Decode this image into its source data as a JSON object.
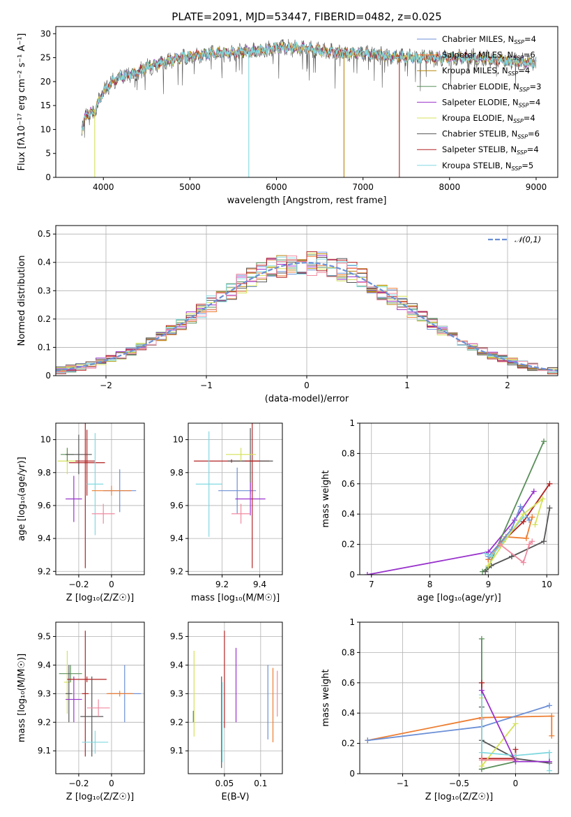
{
  "title": "PLATE=2091, MJD=53447, FIBERID=0482, z=0.025",
  "colors": {
    "chabrier_miles": "#6b8fd6",
    "salpeter_miles": "#ed7d31",
    "kroupa_miles": "#b8860b",
    "chabrier_elodie": "#5a8f5a",
    "salpeter_elodie": "#9932cc",
    "kroupa_elodie": "#d4e157",
    "chabrier_stelib": "#555555",
    "salpeter_stelib": "#b22222",
    "kroupa_stelib": "#80d8e0",
    "pink": "#f08aa0"
  },
  "chart_data": [
    {
      "id": "spectrum",
      "type": "line",
      "title": "PLATE=2091, MJD=53447, FIBERID=0482, z=0.025",
      "xlabel": "wavelength [Angstrom, rest frame]",
      "ylabel": "Flux [fλ10⁻¹⁷ erg cm⁻² s⁻¹ A⁻¹]",
      "xlim": [
        3450,
        9250
      ],
      "ylim": [
        0,
        31.5
      ],
      "xticks": [
        4000,
        5000,
        6000,
        7000,
        8000,
        9000
      ],
      "yticks": [
        0,
        5,
        10,
        15,
        20,
        25,
        30
      ],
      "grid": false,
      "legend_position": "top-right",
      "series": [
        {
          "name": "Chabrier MILES, N_SSP=4",
          "label_main": "Chabrier MILES, N",
          "label_sub": "SSP",
          "label_tail": "=4",
          "color_key": "chabrier_miles"
        },
        {
          "name": "Salpeter MILES, N_SSP=6",
          "label_main": "Salpeter MILES, N",
          "label_sub": "SSP",
          "label_tail": "=6",
          "color_key": "salpeter_miles"
        },
        {
          "name": "Kroupa MILES, N_SSP=4",
          "label_main": "Kroupa MILES, N",
          "label_sub": "SSP",
          "label_tail": "=4",
          "color_key": "kroupa_miles"
        },
        {
          "name": "Chabrier ELODIE, N_SSP=3",
          "label_main": "Chabrier ELODIE, N",
          "label_sub": "SSP",
          "label_tail": "=3",
          "color_key": "chabrier_elodie"
        },
        {
          "name": "Salpeter ELODIE, N_SSP=4",
          "label_main": "Salpeter ELODIE, N",
          "label_sub": "SSP",
          "label_tail": "=4",
          "color_key": "salpeter_elodie"
        },
        {
          "name": "Kroupa ELODIE, N_SSP=4",
          "label_main": "Kroupa ELODIE, N",
          "label_sub": "SSP",
          "label_tail": "=4",
          "color_key": "kroupa_elodie"
        },
        {
          "name": "Chabrier STELIB, N_SSP=6",
          "label_main": "Chabrier STELIB, N",
          "label_sub": "SSP",
          "label_tail": "=6",
          "color_key": "chabrier_stelib"
        },
        {
          "name": "Salpeter STELIB, N_SSP=4",
          "label_main": "Salpeter STELIB, N",
          "label_sub": "SSP",
          "label_tail": "=4",
          "color_key": "salpeter_stelib"
        },
        {
          "name": "Kroupa STELIB, N_SSP=5",
          "label_main": "Kroupa STELIB, N",
          "label_sub": "SSP",
          "label_tail": "=5",
          "color_key": "kroupa_stelib"
        }
      ],
      "continuum": [
        [
          3750,
          10
        ],
        [
          3800,
          13
        ],
        [
          3900,
          14
        ],
        [
          3950,
          16
        ],
        [
          4000,
          18
        ],
        [
          4100,
          20
        ],
        [
          4200,
          21
        ],
        [
          4300,
          21.5
        ],
        [
          4400,
          22
        ],
        [
          4500,
          23
        ],
        [
          4700,
          24
        ],
        [
          4900,
          25
        ],
        [
          5100,
          25.5
        ],
        [
          5300,
          26
        ],
        [
          5500,
          26
        ],
        [
          5800,
          26.5
        ],
        [
          6000,
          27
        ],
        [
          6300,
          27
        ],
        [
          6500,
          26.5
        ],
        [
          6700,
          26
        ],
        [
          7000,
          26
        ],
        [
          7200,
          25.5
        ],
        [
          7500,
          25
        ],
        [
          7800,
          25
        ],
        [
          8000,
          25
        ],
        [
          8300,
          25
        ],
        [
          8600,
          24.5
        ],
        [
          8900,
          24
        ],
        [
          9000,
          24
        ]
      ],
      "dips": [
        {
          "x": 3900,
          "y": 0,
          "key": "kroupa_elodie"
        },
        {
          "x": 5680,
          "y": 0,
          "key": "kroupa_stelib"
        },
        {
          "x": 6780,
          "y": 0,
          "key": "kroupa_miles"
        },
        {
          "x": 7420,
          "y": 0,
          "key": "salpeter_stelib"
        }
      ]
    },
    {
      "id": "residuals",
      "type": "histogram",
      "xlabel": "(data-model)/error",
      "ylabel": "Normed distribution",
      "xlim": [
        -2.5,
        2.5
      ],
      "ylim": [
        0,
        0.53
      ],
      "xticks": [
        -2,
        -1,
        0,
        1,
        2
      ],
      "yticks": [
        0.0,
        0.1,
        0.2,
        0.3,
        0.4,
        0.5
      ],
      "grid": true,
      "legend_position": "top-right",
      "curve": {
        "name": "𝒩(0,1)",
        "type": "gaussian",
        "mean": 0,
        "sigma": 1,
        "color_key": "chabrier_miles"
      },
      "bin_width": 0.1
    },
    {
      "id": "age_vs_Z",
      "type": "errorbar",
      "xlabel": "Z [log₁₀(Z/Z☉)]",
      "ylabel": "age  [log₁₀(age/yr)]",
      "xlim": [
        -0.34,
        0.2
      ],
      "ylim": [
        9.18,
        10.1
      ],
      "xticks": [
        -0.2,
        0.0
      ],
      "yticks": [
        9.2,
        9.4,
        9.6,
        9.8,
        10.0
      ],
      "grid": true,
      "points": [
        {
          "x": -0.27,
          "y": 9.87,
          "xerr": 0.06,
          "yerr": 0.08,
          "key": "kroupa_elodie"
        },
        {
          "x": -0.27,
          "y": 9.91,
          "xerr": 0.04,
          "yerr": 0.04,
          "key": "chabrier_elodie"
        },
        {
          "x": -0.2,
          "y": 9.91,
          "xerr": 0.08,
          "yerr": 0.12,
          "key": "chabrier_stelib"
        },
        {
          "x": -0.23,
          "y": 9.64,
          "xerr": 0.05,
          "yerr": 0.14,
          "key": "salpeter_elodie"
        },
        {
          "x": -0.15,
          "y": 9.86,
          "xerr": 0.11,
          "yerr": 0.2,
          "key": "salpeter_stelib"
        },
        {
          "x": -0.16,
          "y": 9.87,
          "xerr": 0.06,
          "yerr": 0.65,
          "key": "salpeter_stelib"
        },
        {
          "x": -0.1,
          "y": 9.73,
          "xerr": 0.05,
          "yerr": 0.31,
          "key": "kroupa_stelib"
        },
        {
          "x": -0.05,
          "y": 9.55,
          "xerr": 0.07,
          "yerr": 0.06,
          "key": "pink"
        },
        {
          "x": 0.05,
          "y": 9.69,
          "xerr": 0.1,
          "yerr": 0.13,
          "key": "chabrier_miles"
        },
        {
          "x": 0.0,
          "y": 9.69,
          "xerr": 0.12,
          "yerr": 0.03,
          "key": "salpeter_miles"
        }
      ]
    },
    {
      "id": "age_vs_mass",
      "type": "errorbar",
      "xlabel": "mass [log₁₀(M/M☉)]",
      "ylabel": "",
      "xlim": [
        9.02,
        9.52
      ],
      "ylim": [
        9.18,
        10.1
      ],
      "xticks": [
        9.2,
        9.4
      ],
      "yticks": [
        9.2,
        9.4,
        9.6,
        9.8,
        10.0
      ],
      "grid": true,
      "points": [
        {
          "x": 9.25,
          "y": 9.87,
          "xerr": 0.2,
          "yerr": 0.01,
          "key": "salpeter_stelib"
        },
        {
          "x": 9.35,
          "y": 9.87,
          "xerr": 0.12,
          "yerr": 0.2,
          "key": "chabrier_stelib"
        },
        {
          "x": 9.13,
          "y": 9.73,
          "xerr": 0.07,
          "yerr": 0.32,
          "key": "kroupa_stelib"
        },
        {
          "x": 9.28,
          "y": 9.69,
          "xerr": 0.1,
          "yerr": 0.14,
          "key": "chabrier_miles"
        },
        {
          "x": 9.35,
          "y": 9.64,
          "xerr": 0.08,
          "yerr": 0.1,
          "key": "salpeter_elodie"
        },
        {
          "x": 9.3,
          "y": 9.55,
          "xerr": 0.05,
          "yerr": 0.06,
          "key": "pink"
        },
        {
          "x": 9.36,
          "y": 9.87,
          "xerr": 0.04,
          "yerr": 0.65,
          "key": "salpeter_stelib"
        },
        {
          "x": 9.3,
          "y": 9.91,
          "xerr": 0.08,
          "yerr": 0.04,
          "key": "kroupa_elodie"
        }
      ]
    },
    {
      "id": "weight_vs_age",
      "type": "line",
      "xlabel": "age  [log₁₀(age/yr)]",
      "ylabel": "mass weight",
      "xlim": [
        6.8,
        10.2
      ],
      "ylim": [
        0,
        1.0
      ],
      "xticks": [
        7,
        8,
        9,
        10
      ],
      "yticks": [
        0.0,
        0.2,
        0.4,
        0.6,
        0.8,
        1.0
      ],
      "grid": true,
      "series": [
        {
          "key": "salpeter_elodie",
          "x": [
            6.93,
            9.0,
            9.45,
            9.78
          ],
          "y": [
            0.0,
            0.15,
            0.36,
            0.55
          ]
        },
        {
          "key": "chabrier_elodie",
          "x": [
            8.9,
            9.0,
            9.95
          ],
          "y": [
            0.02,
            0.05,
            0.88
          ]
        },
        {
          "key": "salpeter_stelib",
          "x": [
            9.0,
            9.25,
            9.6,
            10.05
          ],
          "y": [
            0.1,
            0.22,
            0.35,
            0.6
          ]
        },
        {
          "key": "chabrier_stelib",
          "x": [
            8.95,
            9.05,
            9.4,
            9.95,
            10.05
          ],
          "y": [
            0.02,
            0.06,
            0.12,
            0.22,
            0.44
          ]
        },
        {
          "key": "salpeter_miles",
          "x": [
            9.0,
            9.3,
            9.65,
            9.75
          ],
          "y": [
            0.1,
            0.25,
            0.24,
            0.38
          ]
        },
        {
          "key": "chabrier_miles",
          "x": [
            9.0,
            9.4,
            9.55,
            9.7
          ],
          "y": [
            0.12,
            0.3,
            0.45,
            0.36
          ]
        },
        {
          "key": "kroupa_stelib",
          "x": [
            8.95,
            9.05,
            9.6
          ],
          "y": [
            0.14,
            0.12,
            0.38
          ]
        },
        {
          "key": "kroupa_elodie",
          "x": [
            9.0,
            9.6,
            9.93,
            9.8
          ],
          "y": [
            0.06,
            0.4,
            0.5,
            0.33
          ]
        },
        {
          "key": "pink",
          "x": [
            9.2,
            9.6,
            9.7,
            9.75
          ],
          "y": [
            0.2,
            0.08,
            0.2,
            0.22
          ]
        }
      ]
    },
    {
      "id": "mass_vs_Z",
      "type": "errorbar",
      "xlabel": "Z [log₁₀(Z/Z☉)]",
      "ylabel": "mass [log₁₀(M/M☉)]",
      "xlim": [
        -0.34,
        0.2
      ],
      "ylim": [
        9.02,
        9.55
      ],
      "xticks": [
        -0.2,
        0.0
      ],
      "yticks": [
        9.1,
        9.2,
        9.3,
        9.4,
        9.5
      ],
      "grid": true,
      "points": [
        {
          "x": -0.27,
          "y": 9.34,
          "xerr": 0.02,
          "yerr": 0.11,
          "key": "kroupa_elodie"
        },
        {
          "x": -0.25,
          "y": 9.37,
          "xerr": 0.07,
          "yerr": 0.03,
          "key": "chabrier_elodie"
        },
        {
          "x": -0.26,
          "y": 9.3,
          "xerr": 0.02,
          "yerr": 0.1,
          "key": "chabrier_stelib"
        },
        {
          "x": -0.23,
          "y": 9.28,
          "xerr": 0.05,
          "yerr": 0.08,
          "key": "salpeter_elodie"
        },
        {
          "x": -0.15,
          "y": 9.35,
          "xerr": 0.12,
          "yerr": 0.01,
          "key": "salpeter_stelib"
        },
        {
          "x": -0.16,
          "y": 9.3,
          "xerr": 0.02,
          "yerr": 0.22,
          "key": "salpeter_stelib"
        },
        {
          "x": -0.12,
          "y": 9.22,
          "xerr": 0.07,
          "yerr": 0.14,
          "key": "chabrier_stelib"
        },
        {
          "x": -0.1,
          "y": 9.13,
          "xerr": 0.08,
          "yerr": 0.04,
          "key": "kroupa_stelib"
        },
        {
          "x": -0.08,
          "y": 9.25,
          "xerr": 0.07,
          "yerr": 0.03,
          "key": "pink"
        },
        {
          "x": 0.08,
          "y": 9.3,
          "xerr": 0.1,
          "yerr": 0.1,
          "key": "chabrier_miles"
        },
        {
          "x": 0.05,
          "y": 9.3,
          "xerr": 0.08,
          "yerr": 0.01,
          "key": "salpeter_miles"
        }
      ]
    },
    {
      "id": "mass_vs_ebv",
      "type": "errorbar",
      "xlabel": "E(B-V)",
      "ylabel": "",
      "xlim": [
        0.0,
        0.13
      ],
      "ylim": [
        9.02,
        9.55
      ],
      "xticks": [
        0.05,
        0.1
      ],
      "yticks": [
        9.1,
        9.2,
        9.3,
        9.4,
        9.5
      ],
      "grid": true,
      "points": [
        {
          "x": 0.008,
          "y": 9.3,
          "xerr": 0,
          "yerr": 0.15,
          "key": "kroupa_elodie"
        },
        {
          "x": 0.007,
          "y": 9.22,
          "xerr": 0,
          "yerr": 0.02,
          "key": "chabrier_elodie"
        },
        {
          "x": 0.046,
          "y": 9.2,
          "xerr": 0,
          "yerr": 0.16,
          "key": "chabrier_stelib"
        },
        {
          "x": 0.047,
          "y": 9.2,
          "xerr": 0,
          "yerr": 0.14,
          "key": "kroupa_stelib"
        },
        {
          "x": 0.05,
          "y": 9.35,
          "xerr": 0,
          "yerr": 0.17,
          "key": "salpeter_stelib"
        },
        {
          "x": 0.066,
          "y": 9.33,
          "xerr": 0,
          "yerr": 0.13,
          "key": "salpeter_elodie"
        },
        {
          "x": 0.11,
          "y": 9.27,
          "xerr": 0,
          "yerr": 0.13,
          "key": "chabrier_miles"
        },
        {
          "x": 0.117,
          "y": 9.26,
          "xerr": 0,
          "yerr": 0.13,
          "key": "salpeter_miles"
        },
        {
          "x": 0.123,
          "y": 9.3,
          "xerr": 0,
          "yerr": 0.08,
          "key": "pink"
        }
      ]
    },
    {
      "id": "weight_vs_Z",
      "type": "line",
      "xlabel": "Z [log₁₀(Z/Z☉)]",
      "ylabel": "mass weight",
      "xlim": [
        -1.38,
        0.38
      ],
      "ylim": [
        0,
        1.0
      ],
      "xticks": [
        -1.0,
        -0.5,
        0.0
      ],
      "yticks": [
        0.0,
        0.2,
        0.4,
        0.6,
        0.8,
        1.0
      ],
      "grid": true,
      "series": [
        {
          "key": "salpeter_miles",
          "x": [
            -1.31,
            -0.3,
            0.32,
            0.32
          ],
          "y": [
            0.22,
            0.37,
            0.38,
            0.25
          ]
        },
        {
          "key": "chabrier_miles",
          "x": [
            -1.31,
            -0.3,
            0.3
          ],
          "y": [
            0.22,
            0.31,
            0.45
          ]
        },
        {
          "key": "chabrier_elodie",
          "x": [
            -0.3,
            -0.3,
            0.0,
            -0.3
          ],
          "y": [
            0.89,
            0.03,
            0.08,
            0.03
          ]
        },
        {
          "key": "salpeter_stelib",
          "x": [
            -0.3,
            -0.3,
            0.0,
            0.0
          ],
          "y": [
            0.6,
            0.1,
            0.1,
            0.16
          ]
        },
        {
          "key": "chabrier_stelib",
          "x": [
            -0.3,
            -0.3,
            0.0,
            0.3
          ],
          "y": [
            0.44,
            0.22,
            0.1,
            0.07
          ]
        },
        {
          "key": "kroupa_elodie",
          "x": [
            -0.3,
            -0.3,
            0.0
          ],
          "y": [
            0.5,
            0.05,
            0.33
          ]
        },
        {
          "key": "pink",
          "x": [
            -0.3,
            -0.3,
            0.0
          ],
          "y": [
            0.36,
            0.09,
            0.09
          ]
        },
        {
          "key": "kroupa_stelib",
          "x": [
            -0.3,
            -0.3,
            0.0,
            0.3,
            0.3
          ],
          "y": [
            0.52,
            0.14,
            0.12,
            0.14,
            0.02
          ]
        },
        {
          "key": "salpeter_elodie",
          "x": [
            -0.3,
            0.0,
            0.3
          ],
          "y": [
            0.55,
            0.08,
            0.08
          ]
        }
      ]
    }
  ]
}
